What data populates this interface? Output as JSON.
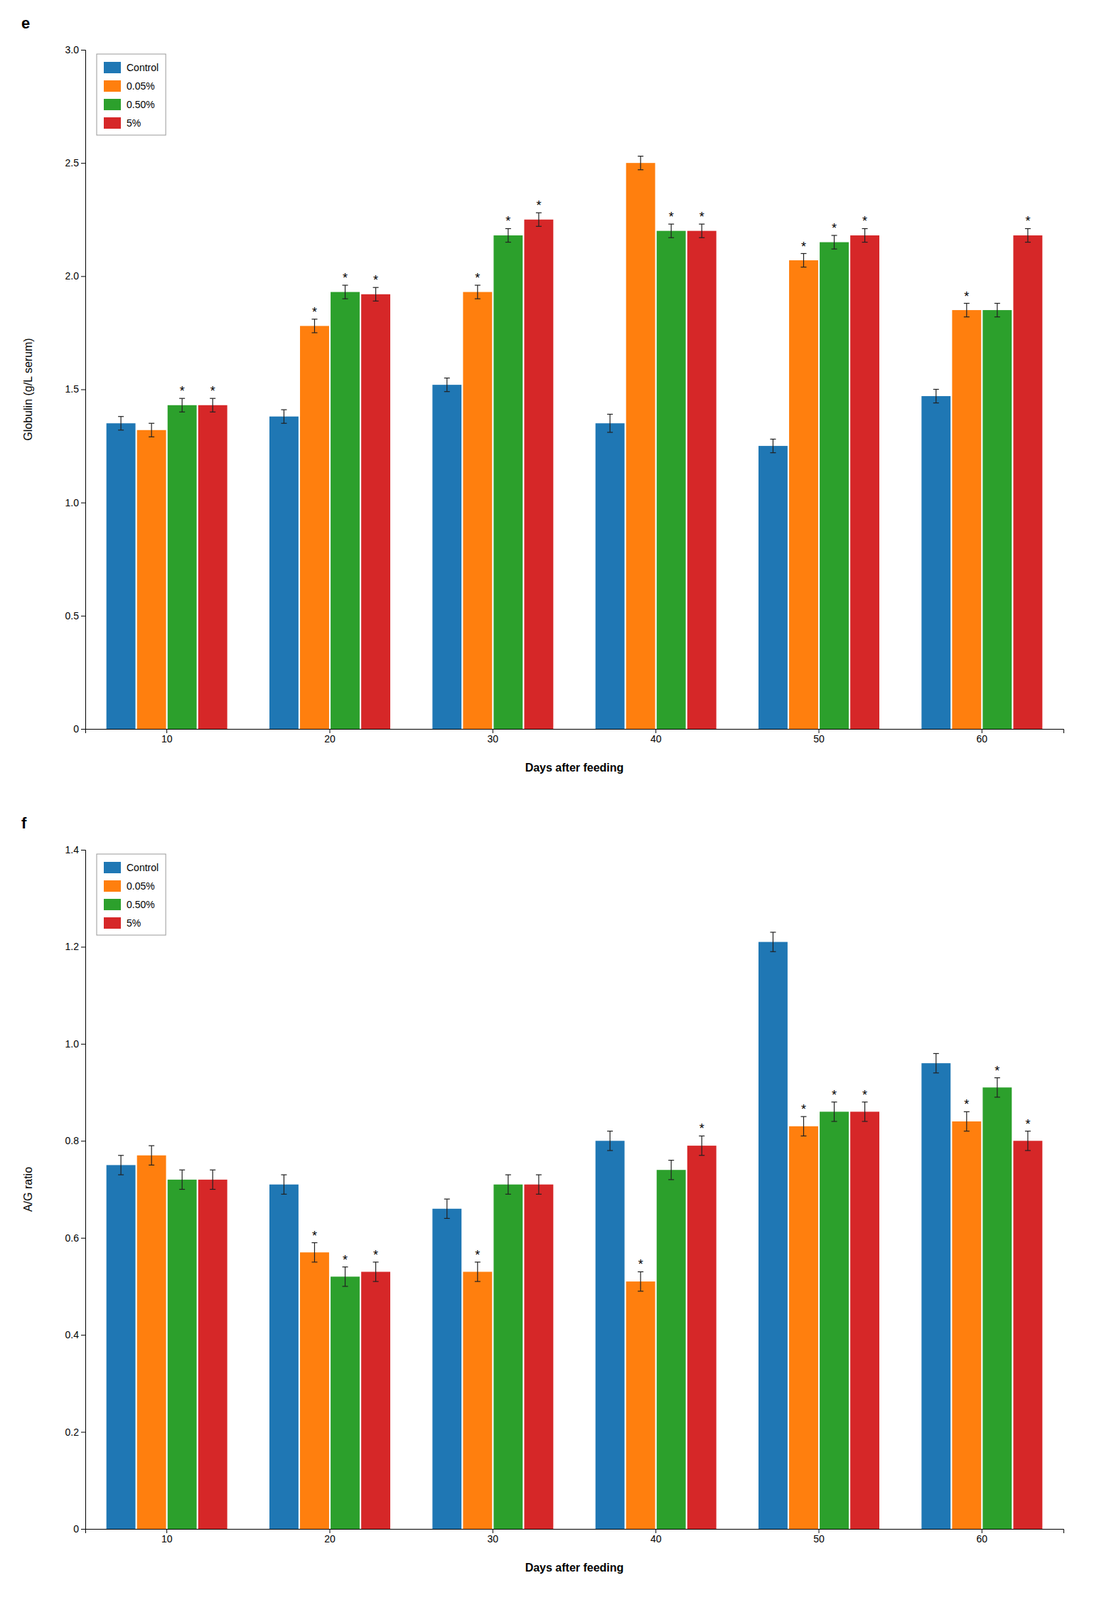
{
  "chart_data": [
    {
      "type": "bar",
      "title": "e",
      "xlabel": "Days after feeding",
      "ylabel": "Globulin (g/L serum)",
      "categories": [
        "10",
        "20",
        "30",
        "40",
        "50",
        "60"
      ],
      "series": [
        {
          "name": "Control",
          "values": [
            1.35,
            1.38,
            1.52,
            1.35,
            1.25,
            1.47
          ],
          "errors": [
            0.03,
            0.03,
            0.03,
            0.04,
            0.03,
            0.03
          ],
          "significance": [
            false,
            false,
            false,
            false,
            false,
            false
          ]
        },
        {
          "name": "0.05%",
          "values": [
            1.32,
            1.78,
            1.93,
            2.5,
            2.07,
            1.85
          ],
          "errors": [
            0.03,
            0.03,
            0.03,
            0.03,
            0.03,
            0.03
          ],
          "significance": [
            false,
            true,
            true,
            false,
            true,
            true
          ]
        },
        {
          "name": "0.50%",
          "values": [
            1.43,
            1.93,
            2.18,
            2.2,
            2.15,
            1.85
          ],
          "errors": [
            0.03,
            0.03,
            0.03,
            0.03,
            0.03,
            0.03
          ],
          "significance": [
            true,
            true,
            true,
            true,
            true,
            false
          ]
        },
        {
          "name": "5%",
          "values": [
            1.43,
            1.92,
            2.25,
            2.2,
            2.18,
            2.18
          ],
          "errors": [
            0.03,
            0.03,
            0.03,
            0.03,
            0.03,
            0.03
          ],
          "significance": [
            true,
            true,
            true,
            true,
            true,
            true
          ]
        }
      ],
      "significance_label": "*",
      "ylim": [
        0,
        3.0
      ],
      "yticks": [
        0,
        0.5,
        {
          "value": 1.0,
          "label": "1.0"
        },
        1.5,
        {
          "value": 2.0,
          "label": "2.0"
        },
        2.5,
        {
          "value": 3.0,
          "label": "3.0"
        }
      ],
      "grid": false,
      "legend": "top-left"
    },
    {
      "type": "bar",
      "title": "f",
      "xlabel": "Days after feeding",
      "ylabel": "A/G ratio",
      "categories": [
        "10",
        "20",
        "30",
        "40",
        "50",
        "60"
      ],
      "series": [
        {
          "name": "Control",
          "values": [
            0.75,
            0.71,
            0.66,
            0.8,
            1.21,
            0.96
          ],
          "errors": [
            0.02,
            0.02,
            0.02,
            0.02,
            0.02,
            0.02
          ],
          "significance": [
            false,
            false,
            false,
            false,
            false,
            false
          ]
        },
        {
          "name": "0.05%",
          "values": [
            0.77,
            0.57,
            0.53,
            0.51,
            0.83,
            0.84
          ],
          "errors": [
            0.02,
            0.02,
            0.02,
            0.02,
            0.02,
            0.02
          ],
          "significance": [
            false,
            true,
            true,
            true,
            true,
            true
          ]
        },
        {
          "name": "0.50%",
          "values": [
            0.72,
            0.52,
            0.71,
            0.74,
            0.86,
            0.91
          ],
          "errors": [
            0.02,
            0.02,
            0.02,
            0.02,
            0.02,
            0.02
          ],
          "significance": [
            false,
            true,
            false,
            false,
            true,
            true
          ]
        },
        {
          "name": "5%",
          "values": [
            0.72,
            0.53,
            0.71,
            0.79,
            0.86,
            0.8
          ],
          "errors": [
            0.02,
            0.02,
            0.02,
            0.02,
            0.02,
            0.02
          ],
          "significance": [
            false,
            true,
            false,
            true,
            true,
            true
          ]
        }
      ],
      "significance_label": "*",
      "ylim": [
        0,
        1.4
      ],
      "yticks": [
        0,
        0.2,
        0.4,
        0.6,
        0.8,
        {
          "value": 1.0,
          "label": "1.0"
        },
        1.2,
        1.4
      ],
      "grid": false,
      "legend": "top-left"
    }
  ]
}
